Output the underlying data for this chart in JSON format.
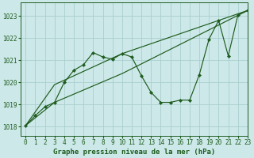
{
  "title": "Graphe pression niveau de la mer (hPa)",
  "bg_color": "#cce8e8",
  "grid_color": "#aacece",
  "line_color": "#1e5c1e",
  "xlim": [
    -0.5,
    23
  ],
  "ylim": [
    1017.6,
    1023.6
  ],
  "yticks": [
    1018,
    1019,
    1020,
    1021,
    1022,
    1023
  ],
  "xticks": [
    0,
    1,
    2,
    3,
    4,
    5,
    6,
    7,
    8,
    9,
    10,
    11,
    12,
    13,
    14,
    15,
    16,
    17,
    18,
    19,
    20,
    21,
    22,
    23
  ],
  "main_x": [
    0,
    1,
    2,
    3,
    4,
    5,
    6,
    7,
    8,
    9,
    10,
    11,
    12,
    13,
    14,
    15,
    16,
    17,
    18,
    19,
    20,
    21,
    22,
    23
  ],
  "main_y": [
    1018.05,
    1018.5,
    1018.9,
    1019.1,
    1020.0,
    1020.55,
    1020.8,
    1021.35,
    1021.15,
    1021.05,
    1021.3,
    1021.15,
    1020.3,
    1019.55,
    1019.1,
    1019.1,
    1019.2,
    1019.2,
    1020.35,
    1021.95,
    1022.8,
    1021.2,
    1023.05,
    1023.25
  ],
  "line2_x": [
    0,
    3,
    10,
    23
  ],
  "line2_y": [
    1018.05,
    1019.9,
    1021.3,
    1023.25
  ],
  "line3_x": [
    0,
    3,
    10,
    23
  ],
  "line3_y": [
    1018.05,
    1019.1,
    1020.4,
    1023.25
  ],
  "tick_fontsize": 5.5,
  "xlabel_fontsize": 6.5
}
